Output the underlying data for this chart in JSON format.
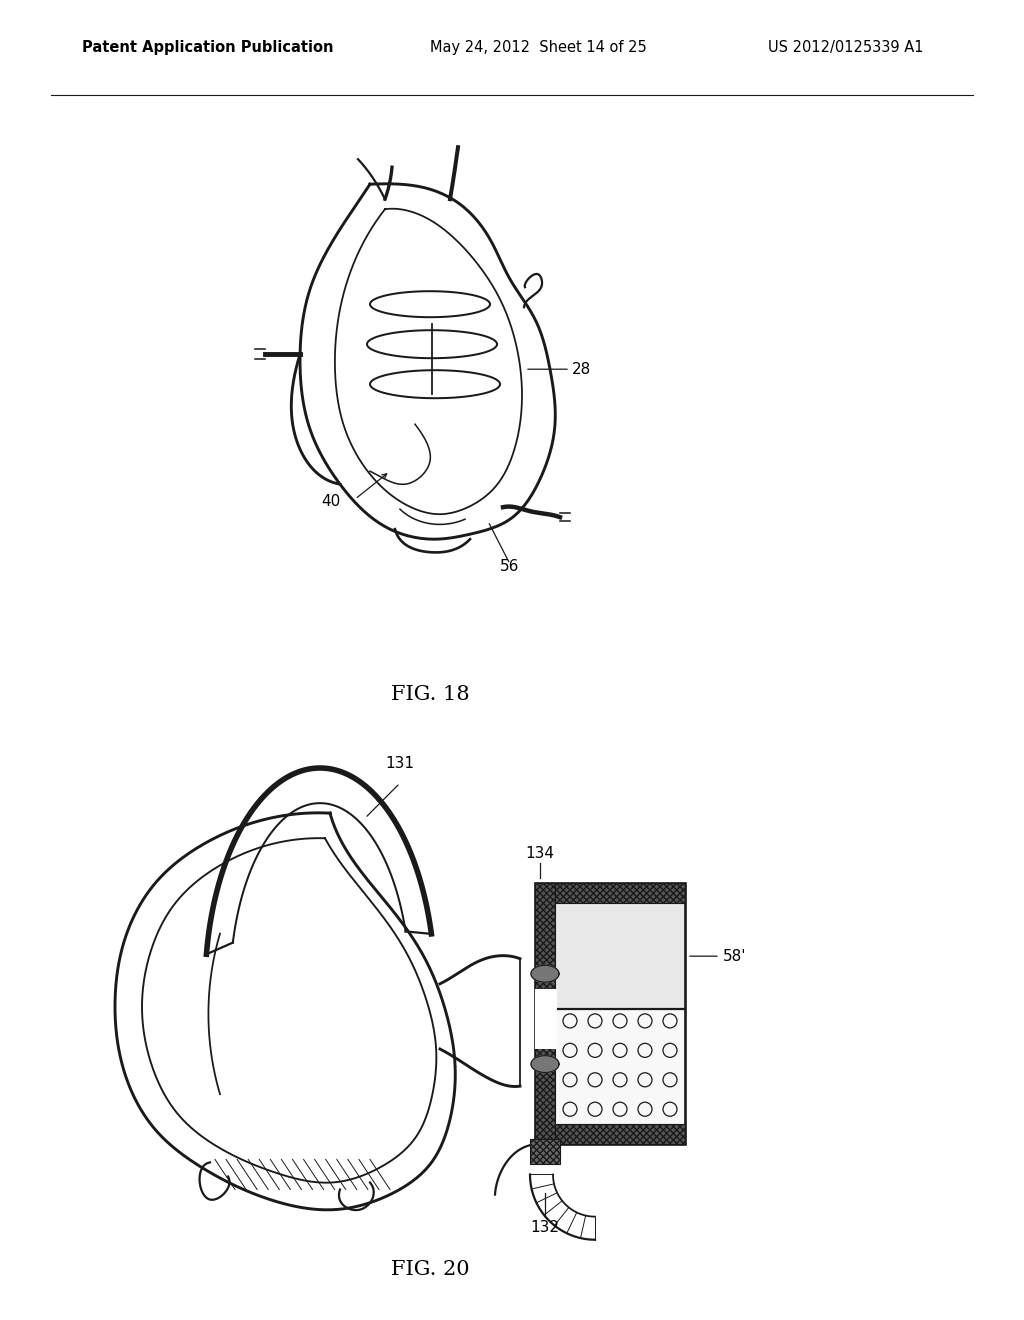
{
  "background_color": "#ffffff",
  "header_left": "Patent Application Publication",
  "header_mid": "May 24, 2012  Sheet 14 of 25",
  "header_right": "US 2012/0125339 A1",
  "fig18_label": "FIG. 18",
  "fig20_label": "FIG. 20",
  "line_color": "#1a1a1a",
  "text_color": "#000000",
  "header_fontsize": 10.5,
  "label_fontsize": 15,
  "annot_fontsize": 11
}
